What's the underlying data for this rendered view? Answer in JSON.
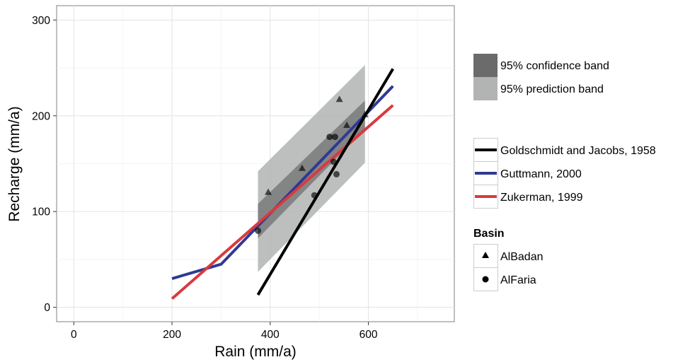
{
  "chart_data": {
    "type": "scatter",
    "xlabel": "Rain (mm/a)",
    "ylabel": "Recharge (mm/a)",
    "xlim": [
      -35,
      775
    ],
    "ylim": [
      -15,
      315
    ],
    "x_ticks": [
      0,
      200,
      400,
      600
    ],
    "y_ticks": [
      0,
      100,
      200,
      300
    ],
    "grid": true,
    "points": [
      {
        "basin": "AlBadan",
        "x": 396,
        "y": 120
      },
      {
        "basin": "AlBadan",
        "x": 465,
        "y": 145
      },
      {
        "basin": "AlBadan",
        "x": 541,
        "y": 217
      },
      {
        "basin": "AlBadan",
        "x": 556,
        "y": 190
      },
      {
        "basin": "AlBadan",
        "x": 593,
        "y": 201
      },
      {
        "basin": "AlFaria",
        "x": 375,
        "y": 80
      },
      {
        "basin": "AlFaria",
        "x": 490,
        "y": 117
      },
      {
        "basin": "AlFaria",
        "x": 521,
        "y": 178
      },
      {
        "basin": "AlFaria",
        "x": 532,
        "y": 178
      },
      {
        "basin": "AlFaria",
        "x": 529,
        "y": 152
      },
      {
        "basin": "AlFaria",
        "x": 535,
        "y": 139
      }
    ],
    "bands": [
      {
        "name": "95% prediction band",
        "color": "#b2b4b4",
        "x": [
          375,
          593
        ],
        "lower": [
          37,
          151
        ],
        "upper": [
          142,
          253
        ]
      },
      {
        "name": "95% confidence band",
        "color": "#6b6b6b",
        "x": [
          375,
          593
        ],
        "lower": [
          72,
          186
        ],
        "upper": [
          108,
          216
        ]
      }
    ],
    "series": [
      {
        "name": "Goldschmidt and Jacobs, 1958",
        "color": "#000000",
        "x": [
          375,
          650
        ],
        "y": [
          13,
          249
        ]
      },
      {
        "name": "Guttmann, 2000",
        "color": "#2e3a93",
        "x": [
          200,
          300,
          650
        ],
        "y": [
          30,
          45,
          231
        ]
      },
      {
        "name": "Zukerman, 1999",
        "color": "#d93a3e",
        "x": [
          200,
          650
        ],
        "y": [
          9,
          211
        ]
      }
    ],
    "legend": {
      "bands": [
        "95% confidence band",
        "95% prediction band"
      ],
      "lines": [
        "Goldschmidt and Jacobs, 1958",
        "Guttmann, 2000",
        "Zukerman, 1999"
      ],
      "basin_title": "Basin",
      "basins": [
        "AlBadan",
        "AlFaria"
      ],
      "placement": "right"
    }
  }
}
